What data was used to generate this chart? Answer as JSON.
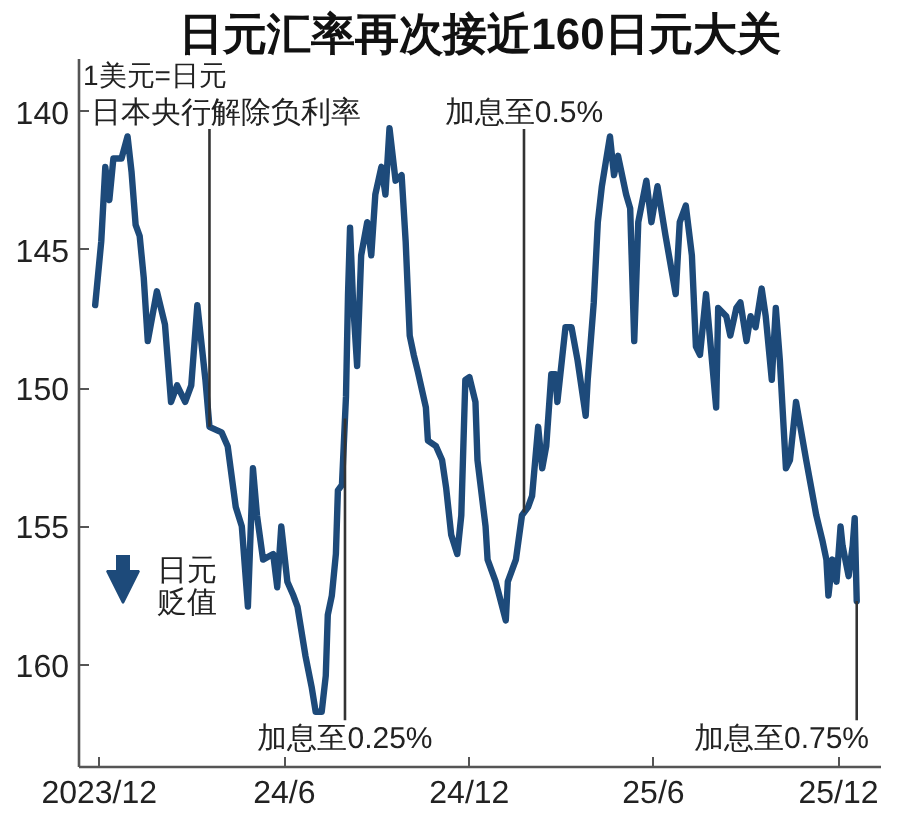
{
  "chart_data": {
    "type": "line",
    "title": "日元汇率再次接近160日元大关",
    "ylabel": "1美元=日元",
    "annotations": [
      "日元贬值"
    ],
    "xlim": [
      "2023-11-11",
      "2026-01-12"
    ],
    "xticks": [
      {
        "value": "2023-12-01",
        "label": "2023/12"
      },
      {
        "value": "2024-06-01",
        "label": "24/6"
      },
      {
        "value": "2024-12-01",
        "label": "24/12"
      },
      {
        "value": "2025-06-01",
        "label": "25/6"
      },
      {
        "value": "2025-12-01",
        "label": "25/12"
      }
    ],
    "ylim": [
      163.7,
      138.1
    ],
    "yticks": [
      140,
      145,
      150,
      155,
      160
    ],
    "x": [
      "2023-11-27",
      "2023-12-03",
      "2023-12-07",
      "2023-12-11",
      "2023-12-15",
      "2023-12-23",
      "2023-12-29",
      "2024-01-02",
      "2024-01-06",
      "2024-01-10",
      "2024-01-14",
      "2024-01-18",
      "2024-01-27",
      "2024-02-04",
      "2024-02-10",
      "2024-02-16",
      "2024-02-24",
      "2024-03-01",
      "2024-03-07",
      "2024-03-15",
      "2024-03-19",
      "2024-03-31",
      "2024-04-06",
      "2024-04-14",
      "2024-04-20",
      "2024-04-26",
      "2024-05-01",
      "2024-05-05",
      "2024-05-11",
      "2024-05-21",
      "2024-05-25",
      "2024-05-29",
      "2024-06-04",
      "2024-06-10",
      "2024-06-14",
      "2024-06-22",
      "2024-06-28",
      "2024-07-02",
      "2024-07-08",
      "2024-07-12",
      "2024-07-14",
      "2024-07-18",
      "2024-07-22",
      "2024-07-24",
      "2024-07-28",
      "2024-08-01",
      "2024-08-03",
      "2024-08-05",
      "2024-08-08",
      "2024-08-12",
      "2024-08-16",
      "2024-08-22",
      "2024-08-26",
      "2024-08-30",
      "2024-09-05",
      "2024-09-09",
      "2024-09-13",
      "2024-09-19",
      "2024-09-25",
      "2024-09-29",
      "2024-10-03",
      "2024-10-07",
      "2024-10-11",
      "2024-10-19",
      "2024-10-21",
      "2024-10-29",
      "2024-11-04",
      "2024-11-08",
      "2024-11-13",
      "2024-11-19",
      "2024-11-23",
      "2024-11-27",
      "2024-12-01",
      "2024-12-07",
      "2024-12-09",
      "2024-12-17",
      "2024-12-19",
      "2024-12-27",
      "2025-01-06",
      "2025-01-08",
      "2025-01-16",
      "2025-01-22",
      "2025-01-28",
      "2025-02-01",
      "2025-02-07",
      "2025-02-11",
      "2025-02-15",
      "2025-02-20",
      "2025-02-24",
      "2025-02-26",
      "2025-03-06",
      "2025-03-12",
      "2025-03-18",
      "2025-03-26",
      "2025-03-28",
      "2025-04-03",
      "2025-04-07",
      "2025-04-11",
      "2025-04-15",
      "2025-04-19",
      "2025-04-23",
      "2025-04-27",
      "2025-05-05",
      "2025-05-09",
      "2025-05-13",
      "2025-05-17",
      "2025-05-25",
      "2025-05-30",
      "2025-06-05",
      "2025-06-13",
      "2025-06-23",
      "2025-06-27",
      "2025-07-03",
      "2025-07-09",
      "2025-07-13",
      "2025-07-17",
      "2025-07-23",
      "2025-08-02",
      "2025-08-04",
      "2025-08-12",
      "2025-08-16",
      "2025-08-22",
      "2025-08-26",
      "2025-09-01",
      "2025-09-05",
      "2025-09-10",
      "2025-09-16",
      "2025-09-20",
      "2025-09-26",
      "2025-09-30",
      "2025-10-04",
      "2025-10-10",
      "2025-10-14",
      "2025-10-20",
      "2025-10-30",
      "2025-11-03",
      "2025-11-09",
      "2025-11-15",
      "2025-11-19",
      "2025-11-21",
      "2025-11-25",
      "2025-11-29",
      "2025-12-03",
      "2025-12-05",
      "2025-12-11",
      "2025-12-15",
      "2025-12-17",
      "2025-12-19"
    ],
    "series": [
      {
        "color": "#1d4a7a",
        "values": [
          147.0,
          144.7,
          142.0,
          143.2,
          141.7,
          141.7,
          140.9,
          142.2,
          144.1,
          144.5,
          146.0,
          148.3,
          146.5,
          147.7,
          150.5,
          149.9,
          150.5,
          149.9,
          147.0,
          149.7,
          151.4,
          151.6,
          152.1,
          154.3,
          155.0,
          157.9,
          152.9,
          154.6,
          156.2,
          156.0,
          157.2,
          155.0,
          157.0,
          157.5,
          157.9,
          159.7,
          160.8,
          161.7,
          161.7,
          160.4,
          158.2,
          157.5,
          156.0,
          153.7,
          153.5,
          150.3,
          146.6,
          144.2,
          146.9,
          149.2,
          145.2,
          144.0,
          145.2,
          143.0,
          142.0,
          143.0,
          140.6,
          142.5,
          142.3,
          144.7,
          148.1,
          148.8,
          149.4,
          150.7,
          151.9,
          152.1,
          152.6,
          153.6,
          155.3,
          156.0,
          154.6,
          149.7,
          149.6,
          150.5,
          152.6,
          155.0,
          156.2,
          157.0,
          158.4,
          157.0,
          156.2,
          154.6,
          154.3,
          153.9,
          151.4,
          152.9,
          152.1,
          149.5,
          149.5,
          150.5,
          147.8,
          147.8,
          149.0,
          151.0,
          149.7,
          146.9,
          144.0,
          142.7,
          141.8,
          140.9,
          142.3,
          141.6,
          143.0,
          143.5,
          148.3,
          144.0,
          142.5,
          144.0,
          142.7,
          144.5,
          146.6,
          144.0,
          143.4,
          145.2,
          148.5,
          148.8,
          146.6,
          150.7,
          147.1,
          147.4,
          148.1,
          147.1,
          146.9,
          148.3,
          147.4,
          147.8,
          146.4,
          147.4,
          149.7,
          147.1,
          149.0,
          152.9,
          152.6,
          150.5,
          152.6,
          153.4,
          154.6,
          155.5,
          156.2,
          157.5,
          156.2,
          157.0,
          155.0,
          155.7,
          156.8,
          155.7,
          154.7,
          157.7
        ]
      }
    ],
    "ref_lines": [
      {
        "axis": "x",
        "value": "2024-03-19",
        "label": "日本央行解除负利率",
        "color": "#333333"
      },
      {
        "axis": "x",
        "value": "2024-07-31",
        "label": "加息至0.25%",
        "color": "#333333"
      },
      {
        "axis": "x",
        "value": "2025-01-24",
        "label": "加息至0.5%",
        "color": "#333333"
      },
      {
        "axis": "x",
        "value": "2025-12-19",
        "label": "加息至0.75%",
        "color": "#333333"
      }
    ]
  }
}
